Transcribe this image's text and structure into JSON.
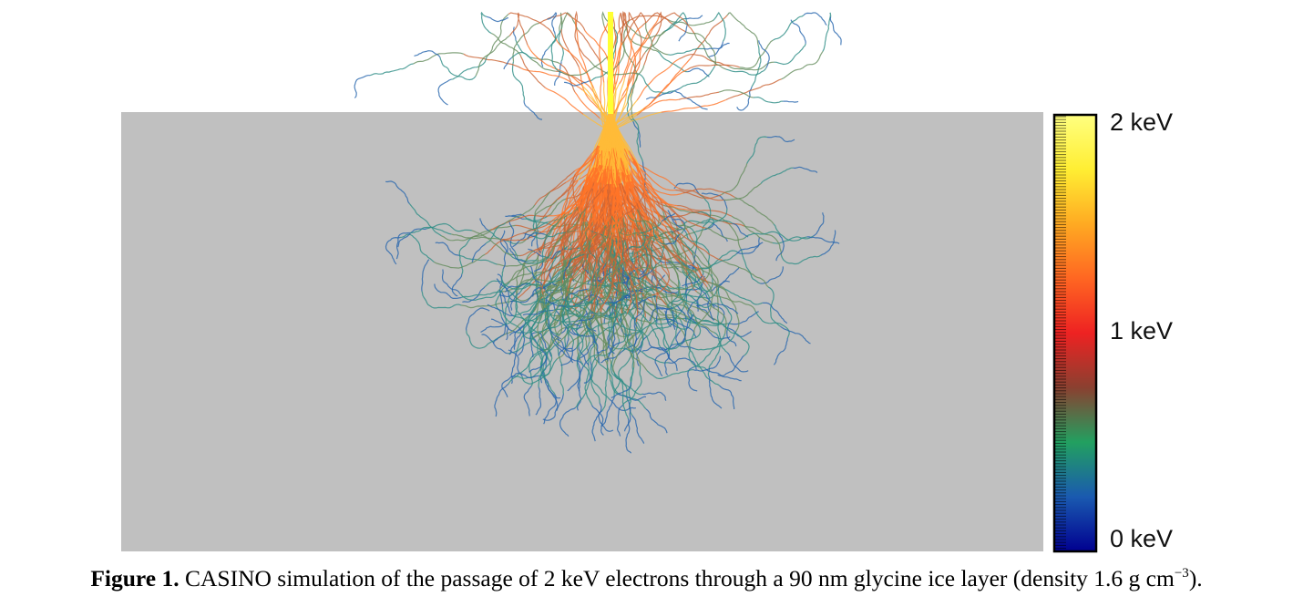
{
  "figure": {
    "layer_color": "#c0c0c0",
    "beam_color": "#ffff33",
    "colorbar": {
      "gradient": [
        "#ffff80",
        "#ffee33",
        "#ffaa22",
        "#ff6622",
        "#ee2222",
        "#8a4030",
        "#22a060",
        "#1a5ab0",
        "#000090"
      ],
      "labels": {
        "top": "2 keV",
        "middle": "1 keV",
        "bottom": "0 keV"
      }
    },
    "trajectory_colors": {
      "high_energy": "#ffe040",
      "mid_energy": "#ff5020",
      "low_energy": "#30a070",
      "lowest_energy": "#2050c0"
    }
  },
  "caption": {
    "label": "Figure 1.",
    "text": " CASINO simulation of the passage of 2 keV electrons through a 90 nm glycine ice layer (density 1.6 g cm",
    "superscript": "−3",
    "tail": ")."
  }
}
